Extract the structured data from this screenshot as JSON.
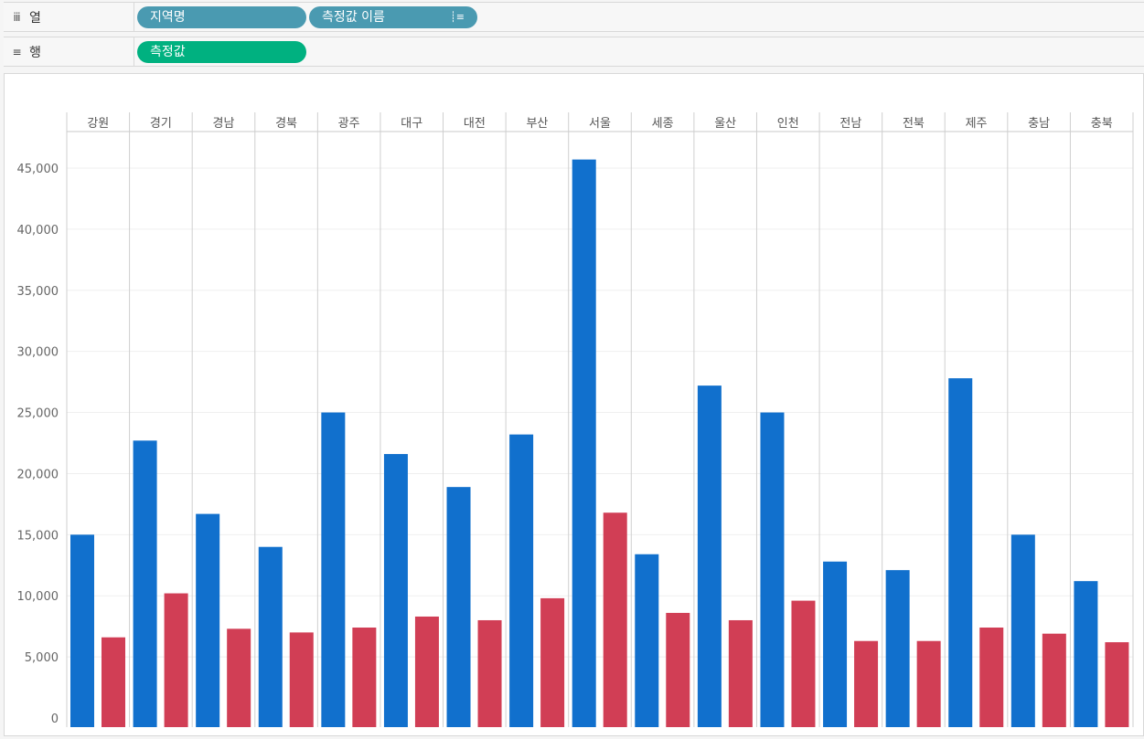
{
  "shelves": {
    "columns": {
      "label": "열",
      "icon": "columns-icon",
      "pills": [
        {
          "label": "지역명",
          "type": "dimension"
        },
        {
          "label": "측정값 이름",
          "type": "dimension",
          "icon": "sort-icon"
        }
      ]
    },
    "rows": {
      "label": "행",
      "icon": "rows-icon",
      "pills": [
        {
          "label": "측정값",
          "type": "measure"
        }
      ]
    }
  },
  "colors": {
    "pill_dimension": "#4a9ab1",
    "pill_measure": "#00b180",
    "series_1": "#1170cd",
    "series_2": "#d13e55"
  },
  "chart_data": {
    "type": "bar",
    "categories": [
      "강원",
      "경기",
      "경남",
      "경북",
      "광주",
      "대구",
      "대전",
      "부산",
      "서울",
      "세종",
      "울산",
      "인천",
      "전남",
      "전북",
      "제주",
      "충남",
      "충북"
    ],
    "series": [
      {
        "values": [
          15000,
          22700,
          16700,
          14000,
          25000,
          21600,
          18900,
          23200,
          45700,
          13400,
          27200,
          25000,
          12800,
          12100,
          27800,
          15000,
          11200
        ],
        "color": "#1170cd"
      },
      {
        "values": [
          6600,
          10200,
          7300,
          7000,
          7400,
          8300,
          8000,
          9800,
          16800,
          8600,
          8000,
          9600,
          6300,
          6300,
          7400,
          6900,
          6200
        ],
        "color": "#d13e55"
      }
    ],
    "yticks": [
      0,
      5000,
      10000,
      15000,
      20000,
      25000,
      30000,
      35000,
      40000,
      45000
    ],
    "ytick_labels": [
      "0",
      "5,000",
      "10,000",
      "15,000",
      "20,000",
      "25,000",
      "30,000",
      "35,000",
      "40,000",
      "45,000"
    ],
    "ylim": [
      0,
      48000
    ],
    "grid": true
  }
}
